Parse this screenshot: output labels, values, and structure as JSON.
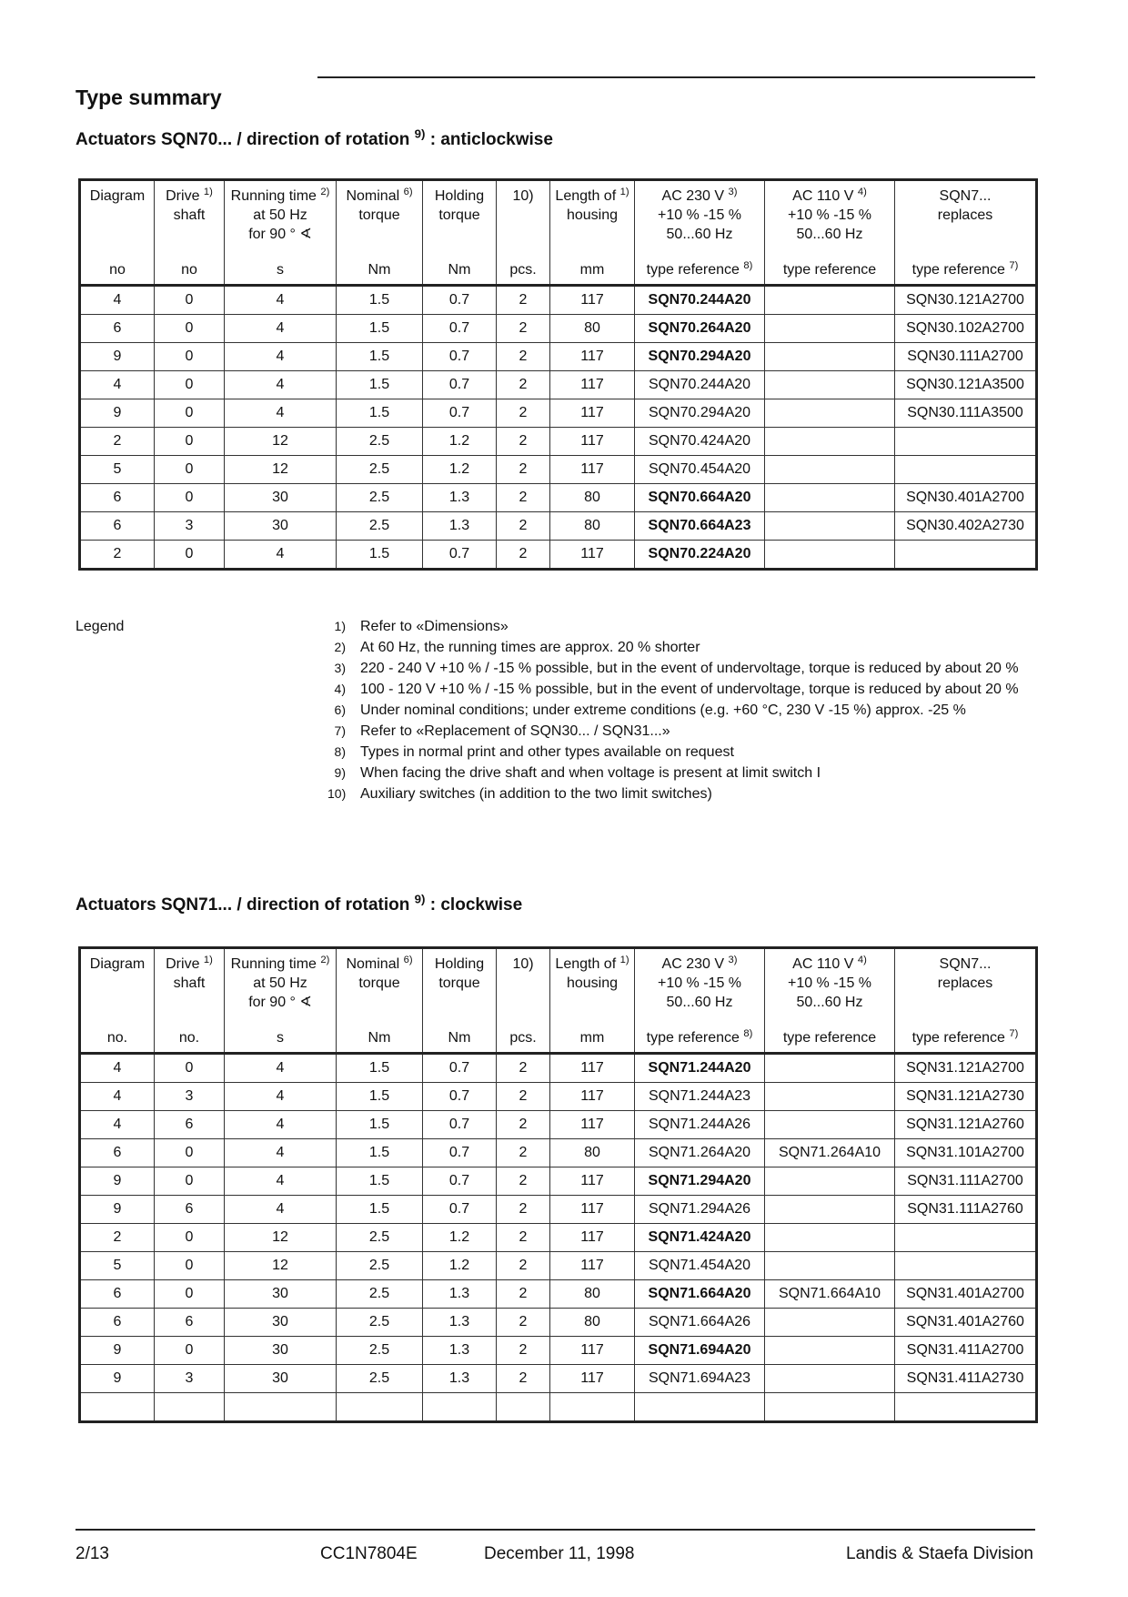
{
  "title": "Type summary",
  "section1": {
    "heading_pre": "Actuators SQN70... / direction of rotation ",
    "heading_sup": "9)",
    "heading_post": " : anticlockwise"
  },
  "section2": {
    "heading_pre": "Actuators SQN71... / direction of rotation ",
    "heading_sup": "9)",
    "heading_post": " : clockwise"
  },
  "columns1": [
    {
      "lines": [
        "Diagram"
      ],
      "sup": "",
      "unit": "no"
    },
    {
      "lines": [
        "Drive",
        "shaft"
      ],
      "sup": "1)",
      "unit": "no"
    },
    {
      "lines": [
        "Running time",
        "at 50 Hz",
        "for 90 ° ∢"
      ],
      "sup": "2)",
      "unit": "s"
    },
    {
      "lines": [
        "Nominal",
        "torque"
      ],
      "sup": "6)",
      "unit": "Nm"
    },
    {
      "lines": [
        "Holding",
        "torque"
      ],
      "sup": "",
      "unit": "Nm"
    },
    {
      "lines": [
        "10)"
      ],
      "sup": "",
      "unit": "pcs."
    },
    {
      "lines": [
        "Length of",
        "housing"
      ],
      "sup": "1)",
      "unit": "mm"
    },
    {
      "lines": [
        "AC 230 V",
        "+10 % -15 %",
        "50...60 Hz"
      ],
      "sup": "3)",
      "unit": "type reference",
      "unit_sup": "8)"
    },
    {
      "lines": [
        "AC 110 V",
        "+10 % -15 %",
        "50...60 Hz"
      ],
      "sup": "4)",
      "unit": "type reference"
    },
    {
      "lines": [
        "SQN7...",
        "replaces"
      ],
      "sup": "",
      "unit": "type reference",
      "unit_sup": "7)"
    }
  ],
  "columns2_units": [
    "no.",
    "no.",
    "s",
    "Nm",
    "Nm",
    "pcs.",
    "mm",
    "type reference",
    "type reference",
    "type reference"
  ],
  "table1": [
    {
      "cells": [
        "4",
        "0",
        "4",
        "1.5",
        "0.7",
        "2",
        "117",
        "SQN70.244A20",
        "",
        "SQN30.121A2700"
      ],
      "bold": true
    },
    {
      "cells": [
        "6",
        "0",
        "4",
        "1.5",
        "0.7",
        "2",
        "80",
        "SQN70.264A20",
        "",
        "SQN30.102A2700"
      ],
      "bold": true
    },
    {
      "cells": [
        "9",
        "0",
        "4",
        "1.5",
        "0.7",
        "2",
        "117",
        "SQN70.294A20",
        "",
        "SQN30.111A2700"
      ],
      "bold": true
    },
    {
      "cells": [
        "4",
        "0",
        "4",
        "1.5",
        "0.7",
        "2",
        "117",
        "SQN70.244A20",
        "",
        "SQN30.121A3500"
      ],
      "bold": false
    },
    {
      "cells": [
        "9",
        "0",
        "4",
        "1.5",
        "0.7",
        "2",
        "117",
        "SQN70.294A20",
        "",
        "SQN30.111A3500"
      ],
      "bold": false
    },
    {
      "cells": [
        "2",
        "0",
        "12",
        "2.5",
        "1.2",
        "2",
        "117",
        "SQN70.424A20",
        "",
        ""
      ],
      "bold": false
    },
    {
      "cells": [
        "5",
        "0",
        "12",
        "2.5",
        "1.2",
        "2",
        "117",
        "SQN70.454A20",
        "",
        ""
      ],
      "bold": false
    },
    {
      "cells": [
        "6",
        "0",
        "30",
        "2.5",
        "1.3",
        "2",
        "80",
        "SQN70.664A20",
        "",
        "SQN30.401A2700"
      ],
      "bold": true
    },
    {
      "cells": [
        "6",
        "3",
        "30",
        "2.5",
        "1.3",
        "2",
        "80",
        "SQN70.664A23",
        "",
        "SQN30.402A2730"
      ],
      "bold": true
    },
    {
      "cells": [
        "2",
        "0",
        "4",
        "1.5",
        "0.7",
        "2",
        "117",
        "SQN70.224A20",
        "",
        ""
      ],
      "bold": true
    }
  ],
  "table2": [
    {
      "cells": [
        "4",
        "0",
        "4",
        "1.5",
        "0.7",
        "2",
        "117",
        "SQN71.244A20",
        "",
        "SQN31.121A2700"
      ],
      "bold": true
    },
    {
      "cells": [
        "4",
        "3",
        "4",
        "1.5",
        "0.7",
        "2",
        "117",
        "SQN71.244A23",
        "",
        "SQN31.121A2730"
      ],
      "bold": false
    },
    {
      "cells": [
        "4",
        "6",
        "4",
        "1.5",
        "0.7",
        "2",
        "117",
        "SQN71.244A26",
        "",
        "SQN31.121A2760"
      ],
      "bold": false
    },
    {
      "cells": [
        "6",
        "0",
        "4",
        "1.5",
        "0.7",
        "2",
        "80",
        "SQN71.264A20",
        "SQN71.264A10",
        "SQN31.101A2700"
      ],
      "bold": false
    },
    {
      "cells": [
        "9",
        "0",
        "4",
        "1.5",
        "0.7",
        "2",
        "117",
        "SQN71.294A20",
        "",
        "SQN31.111A2700"
      ],
      "bold": true
    },
    {
      "cells": [
        "9",
        "6",
        "4",
        "1.5",
        "0.7",
        "2",
        "117",
        "SQN71.294A26",
        "",
        "SQN31.111A2760"
      ],
      "bold": false
    },
    {
      "cells": [
        "2",
        "0",
        "12",
        "2.5",
        "1.2",
        "2",
        "117",
        "SQN71.424A20",
        "",
        ""
      ],
      "bold": true
    },
    {
      "cells": [
        "5",
        "0",
        "12",
        "2.5",
        "1.2",
        "2",
        "117",
        "SQN71.454A20",
        "",
        ""
      ],
      "bold": false
    },
    {
      "cells": [
        "6",
        "0",
        "30",
        "2.5",
        "1.3",
        "2",
        "80",
        "SQN71.664A20",
        "SQN71.664A10",
        "SQN31.401A2700"
      ],
      "bold": true
    },
    {
      "cells": [
        "6",
        "6",
        "30",
        "2.5",
        "1.3",
        "2",
        "80",
        "SQN71.664A26",
        "",
        "SQN31.401A2760"
      ],
      "bold": false
    },
    {
      "cells": [
        "9",
        "0",
        "30",
        "2.5",
        "1.3",
        "2",
        "117",
        "SQN71.694A20",
        "",
        "SQN31.411A2700"
      ],
      "bold": true
    },
    {
      "cells": [
        "9",
        "3",
        "30",
        "2.5",
        "1.3",
        "2",
        "117",
        "SQN71.694A23",
        "",
        "SQN31.411A2730"
      ],
      "bold": false
    },
    {
      "cells": [
        "",
        "",
        "",
        "",
        "",
        "",
        "",
        "",
        "",
        ""
      ],
      "bold": false
    }
  ],
  "legend": {
    "label": "Legend",
    "items": [
      {
        "num": "1)",
        "text": "Refer to «Dimensions»"
      },
      {
        "num": "2)",
        "text": "At 60 Hz, the running times are approx. 20 % shorter"
      },
      {
        "num": "3)",
        "text": "220 - 240 V +10 % / -15 % possible, but in the event of undervoltage, torque is reduced by about 20 %"
      },
      {
        "num": "4)",
        "text": "100 - 120 V +10 % / -15 % possible, but in the event of undervoltage, torque is reduced by about 20 %"
      },
      {
        "num": "6)",
        "text": "Under nominal conditions; under extreme conditions (e.g. +60 °C, 230 V -15 %) approx. -25 %"
      },
      {
        "num": "7)",
        "text": "Refer to «Replacement of SQN30... / SQN31...»"
      },
      {
        "num": "8)",
        "text": "Types in normal print and other types available on request"
      },
      {
        "num": "9)",
        "text": "When facing the drive shaft and when voltage is present at limit switch I"
      },
      {
        "num": "10)",
        "text": "Auxiliary switches (in addition to the two limit switches)"
      }
    ]
  },
  "footer": {
    "page": "2/13",
    "doc": "CC1N7804E",
    "date": "December 11, 1998",
    "company": "Landis & Staefa Division"
  }
}
